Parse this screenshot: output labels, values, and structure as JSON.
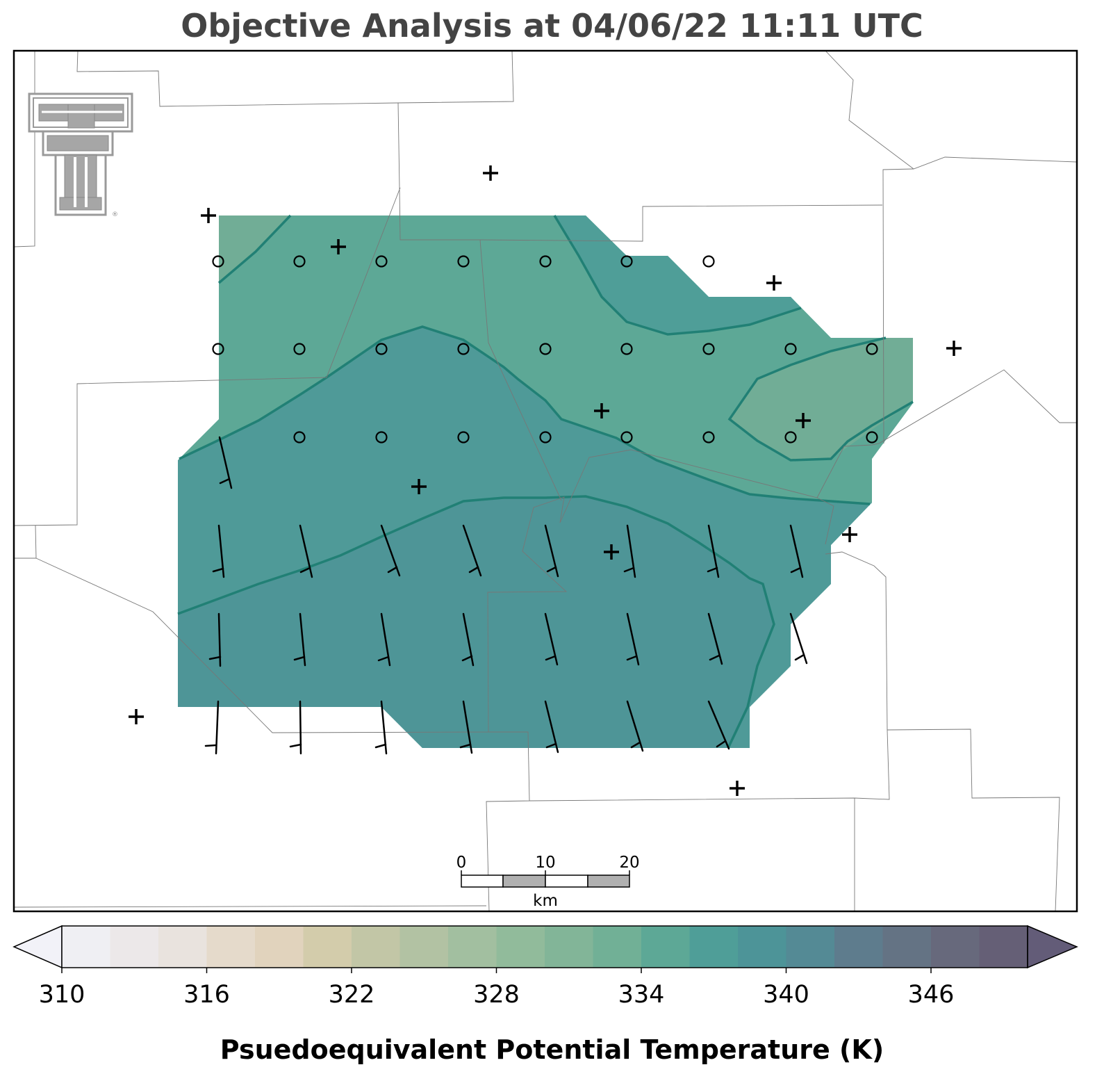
{
  "title": "Objective Analysis at 04/06/22 11:11 UTC",
  "colorbar": {
    "label": "Psuedoequivalent Potential Temperature (K)",
    "ticks": [
      "310",
      "316",
      "322",
      "328",
      "334",
      "340",
      "346"
    ],
    "min": 310,
    "max": 350,
    "step": 2,
    "extend": "both",
    "under_color": "#f2f2f8",
    "over_color": "#635c78",
    "colors": [
      "#efeff3",
      "#ece8e9",
      "#e9e3de",
      "#e5dacb",
      "#e1d3bd",
      "#d3ccab",
      "#c2c6a6",
      "#b2c2a3",
      "#a2bfa0",
      "#91bb9b",
      "#82b598",
      "#71b096",
      "#5da896",
      "#4f9e98",
      "#4d9498",
      "#548a95",
      "#5e7c8d",
      "#647384",
      "#67697c",
      "#655f76"
    ]
  },
  "scale_bar": {
    "labels": [
      "0",
      "10",
      "20"
    ],
    "unit": "km"
  },
  "logo": {
    "name": "texas-tech-double-t-logo",
    "text": "TT",
    "mark": "®"
  },
  "analysis": {
    "variable": "Psuedoequivalent Potential Temperature (K)",
    "contour_interval": 2,
    "filled_levels_present": [
      330,
      332,
      334,
      336,
      338
    ],
    "symbols": [
      "plus = surface station",
      "circle = calm wind",
      "barb = wind"
    ]
  }
}
